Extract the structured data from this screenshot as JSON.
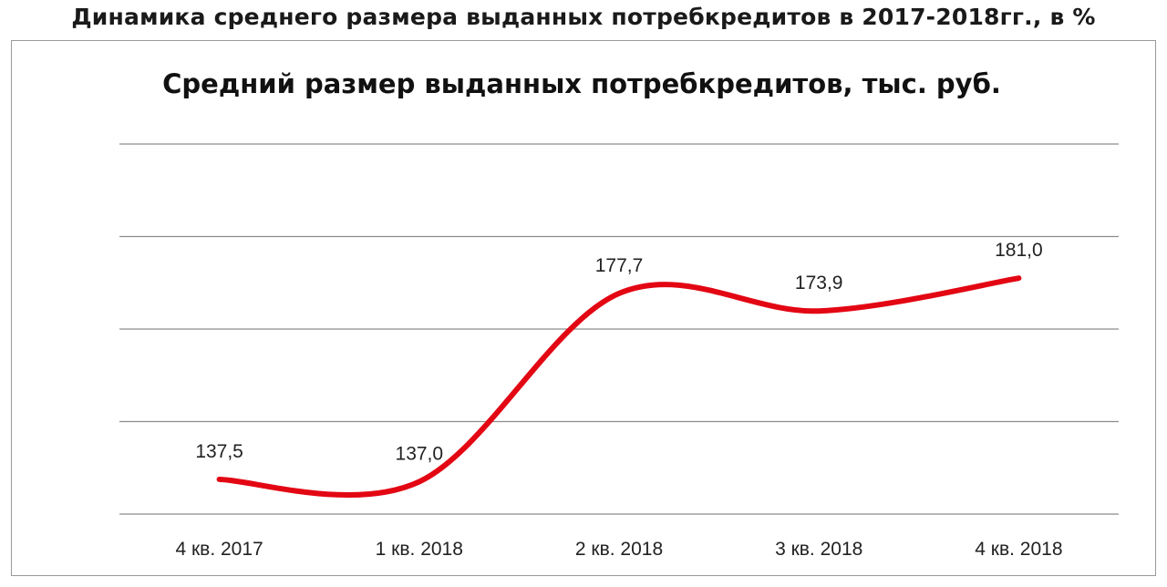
{
  "page": {
    "title": "Динамика среднего размера выданных потребкредитов в 2017-2018гг., в %"
  },
  "chart_data": {
    "type": "line",
    "title": "Средний размер выданных потребкредитов, тыс. руб.",
    "xlabel": "",
    "ylabel": "",
    "categories": [
      "4 кв. 2017",
      "1 кв. 2018",
      "2 кв. 2018",
      "3 кв. 2018",
      "4 кв. 2018"
    ],
    "series": [
      {
        "values": [
          137.5,
          137.0,
          177.7,
          173.9,
          181.0
        ],
        "labels": [
          "137,5",
          "137,0",
          "177,7",
          "173,9",
          "181,0"
        ],
        "color": "#e30613",
        "smooth": true
      }
    ],
    "ylim": [
      130,
      210
    ],
    "y_gridlines": [
      130,
      150,
      170,
      190,
      210
    ],
    "grid": true,
    "y_tick_labels_visible": false,
    "legend": "none"
  }
}
